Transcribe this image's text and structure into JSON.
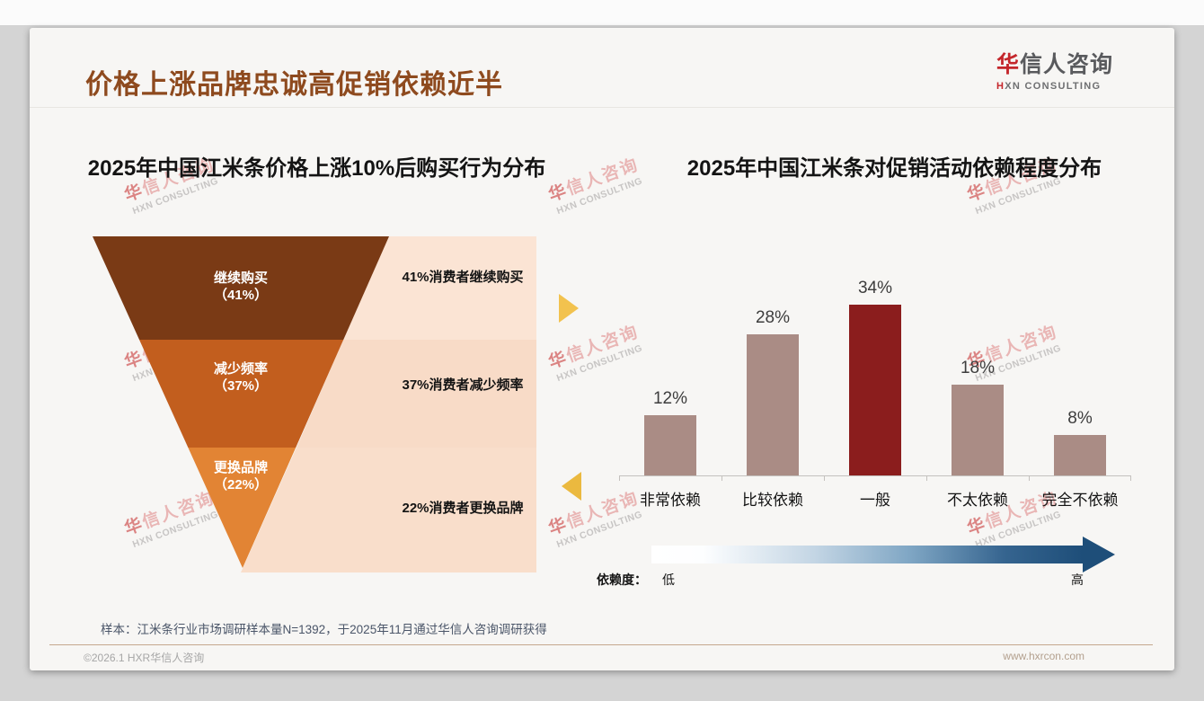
{
  "header": {
    "title": "价格上涨品牌忠诚高促销依赖近半"
  },
  "logo": {
    "name_first": "华",
    "name_rest": "信人咨询",
    "tagline_first": "H",
    "tagline_rest": "XN CONSULTING",
    "brand_red": "#C4262B"
  },
  "watermark": {
    "cn": "华信人咨询",
    "en": "HXN CONSULTING"
  },
  "chart_data": [
    {
      "type": "funnel",
      "title": "2025年中国江米条价格上涨10%后购买行为分布",
      "categories": [
        "继续购买",
        "减少频率",
        "更换品牌"
      ],
      "values": [
        41,
        37,
        22
      ],
      "segments": [
        {
          "name": "继续购买",
          "value": 41,
          "value_label": "（41%）",
          "annotation": "41%消费者继续购买",
          "color": "#7A3A15",
          "panel_color": "#FBE4D4"
        },
        {
          "name": "减少频率",
          "value": 37,
          "value_label": "（37%）",
          "annotation": "37%消费者减少频率",
          "color": "#C25E1E",
          "panel_color": "#F8DBC7"
        },
        {
          "name": "更换品牌",
          "value": 22,
          "value_label": "（22%）",
          "annotation": "22%消费者更换品牌",
          "color": "#E28434",
          "panel_color": "#F9DECB"
        }
      ]
    },
    {
      "type": "bar",
      "title": "2025年中国江米条对促销活动依赖程度分布",
      "categories": [
        "非常依赖",
        "比较依赖",
        "一般",
        "不太依赖",
        "完全不依赖"
      ],
      "values": [
        12,
        28,
        34,
        18,
        8
      ],
      "value_labels": [
        "12%",
        "28%",
        "34%",
        "18%",
        "8%"
      ],
      "ylim": [
        0,
        40
      ],
      "grid": false,
      "bar_color": "#AA8C85",
      "highlight_color": "#8B1D1D",
      "highlight_index": 2,
      "axis_annotation": {
        "label": "依赖度：",
        "low": "低",
        "high": "高",
        "arrow_color": "#1E4E79"
      }
    }
  ],
  "sample_note": "样本：江米条行业市场调研样本量N=1392，于2025年11月通过华信人咨询调研获得",
  "footer": {
    "left": "©2026.1 HXR华信人咨询",
    "right": "www.hxrcon.com"
  }
}
